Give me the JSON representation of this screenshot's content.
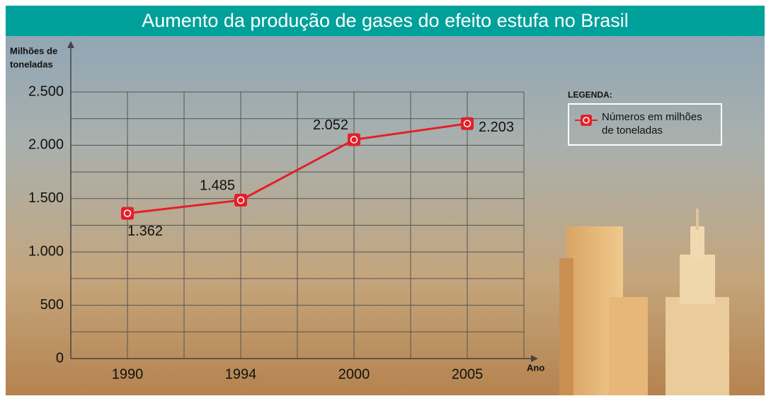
{
  "chart_data": {
    "type": "line",
    "title": "Aumento da produção de gases do efeito estufa no Brasil",
    "ylabel": [
      "Milhões de",
      "toneladas"
    ],
    "xlabel": "Ano",
    "categories": [
      "1990",
      "1994",
      "2000",
      "2005"
    ],
    "series": [
      {
        "name": "Números em milhões de toneladas",
        "color": "#e3202a",
        "values": [
          1362,
          1485,
          2052,
          2203
        ],
        "value_labels": [
          "1.362",
          "1.485",
          "2.052",
          "2.203"
        ]
      }
    ],
    "ylim": [
      0,
      2500
    ],
    "yticks": [
      0,
      500,
      {
        "value": 1000,
        "label": "1.000"
      },
      {
        "value": 1500,
        "label": "1.500"
      },
      {
        "value": 2000,
        "label": "2.000"
      },
      {
        "value": 2500,
        "label": "2.500"
      }
    ],
    "y_minor_ticks": [
      250,
      750,
      1250,
      1750,
      2250
    ],
    "grid": true,
    "legend_title": "LEGENDA:",
    "legend_position": "upper right"
  }
}
